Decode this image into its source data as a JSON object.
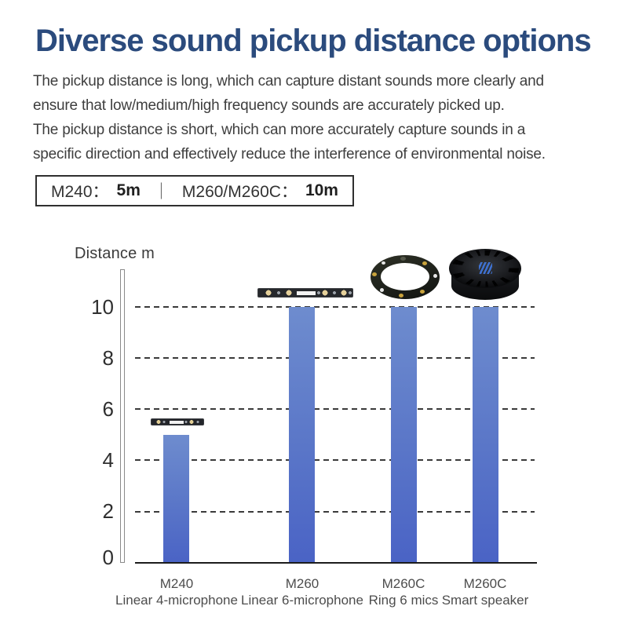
{
  "page": {
    "title": "Diverse sound pickup distance options",
    "description_lines": [
      "The pickup distance is long, which can capture distant sounds more clearly and",
      "ensure that low/medium/high frequency sounds are accurately picked up.",
      "The pickup distance is short, which can more accurately capture sounds in a",
      "specific direction and effectively reduce the interference of environmental noise."
    ]
  },
  "spec_box": {
    "item1_model": "M240：",
    "item1_value": "5m",
    "separator": "｜",
    "item2_model": "M260/M260C：",
    "item2_value": "10m"
  },
  "chart_data": {
    "type": "bar",
    "title": "",
    "ylabel": "Distance m",
    "xlabel": "",
    "ylim": [
      0,
      11.5
    ],
    "yticks": [
      0,
      2,
      4,
      6,
      8,
      10
    ],
    "yticks_display_top_to_bottom": [
      "10",
      "8",
      "6",
      "4",
      "2",
      "0"
    ],
    "grid": "horizontal dashed lines at each tick, behind bars",
    "legend": "none",
    "bar_color_top": "#6e8cce",
    "bar_color_bottom": "#4a63c5",
    "categories": [
      {
        "model": "M240",
        "descriptor": "Linear 4-microphone",
        "value": 5,
        "product_icon": "linear-4-mic-array-image"
      },
      {
        "model": "M260",
        "descriptor": "Linear 6-microphone",
        "value": 10,
        "product_icon": "linear-6-mic-array-image"
      },
      {
        "model": "M260C",
        "descriptor": "Ring 6 mics",
        "value": 10,
        "product_icon": "ring-6-mic-array-image"
      },
      {
        "model": "M260C",
        "descriptor": "Smart speaker",
        "value": 10,
        "product_icon": "smart-speaker-puck-image"
      }
    ]
  },
  "colors": {
    "title_navy": "#2b4b7d",
    "body_text": "#3e3e3e",
    "bar_gradient_top": "#6e8cce",
    "bar_gradient_bottom": "#4a63c5",
    "axis_line": "#1c1c1c",
    "gridline": "#3a3a3a",
    "speaker_logo_blue": "#3f74d8"
  }
}
